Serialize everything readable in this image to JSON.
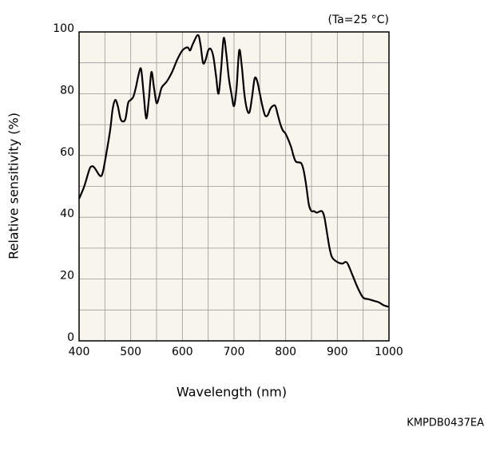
{
  "chart_data": {
    "type": "line",
    "xlabel": "Wavelength (nm)",
    "ylabel": "Relative sensitivity (%)",
    "annotations": [
      "(Ta=25 °C)",
      "KMPDB0437EA"
    ],
    "xlim": [
      400,
      1000
    ],
    "xticks": [
      400,
      500,
      600,
      700,
      800,
      900,
      1000
    ],
    "xminorticks": [
      450,
      550,
      650,
      750,
      850,
      950
    ],
    "ylim": [
      0,
      100
    ],
    "yticks": [
      0,
      20,
      40,
      60,
      80,
      100
    ],
    "yminorticks": [
      10,
      30,
      50,
      70,
      90
    ],
    "grid": true,
    "series": [
      {
        "name": "Relative sensitivity",
        "color": "#000000",
        "x": [
          400,
          410,
          420,
          425,
          430,
          440,
          445,
          450,
          460,
          465,
          470,
          475,
          480,
          485,
          490,
          495,
          500,
          505,
          510,
          515,
          520,
          525,
          530,
          535,
          540,
          545,
          550,
          555,
          560,
          570,
          580,
          590,
          600,
          610,
          615,
          620,
          630,
          635,
          640,
          645,
          650,
          655,
          660,
          665,
          670,
          675,
          680,
          685,
          690,
          695,
          700,
          705,
          710,
          715,
          720,
          725,
          730,
          735,
          740,
          745,
          750,
          755,
          760,
          765,
          770,
          775,
          780,
          785,
          790,
          795,
          800,
          810,
          815,
          820,
          830,
          835,
          840,
          845,
          850,
          855,
          860,
          870,
          875,
          880,
          885,
          890,
          900,
          910,
          915,
          920,
          930,
          940,
          950,
          960,
          970,
          980,
          990,
          1000
        ],
        "values": [
          46,
          50,
          55.5,
          56.5,
          56,
          53.5,
          54,
          58,
          68,
          75,
          78,
          76,
          72,
          71,
          72,
          77,
          78,
          79,
          82,
          86,
          88,
          80,
          72,
          78,
          87,
          82,
          77,
          79,
          82,
          84,
          87,
          91,
          94,
          95,
          94,
          96,
          99,
          96,
          90,
          91,
          94,
          94.5,
          92,
          86,
          80,
          88,
          98,
          93,
          85,
          80,
          76,
          82,
          94,
          89,
          80,
          75,
          74,
          79,
          85,
          84,
          80,
          76,
          73,
          73,
          75,
          76,
          76,
          73,
          70,
          68,
          67,
          63,
          60,
          58,
          57.5,
          55,
          50,
          44,
          42,
          42,
          41.5,
          42,
          40,
          35,
          30,
          27,
          25.5,
          25,
          25.5,
          25,
          21,
          17,
          14,
          13.5,
          13,
          12.5,
          11.5,
          11
        ]
      }
    ]
  }
}
